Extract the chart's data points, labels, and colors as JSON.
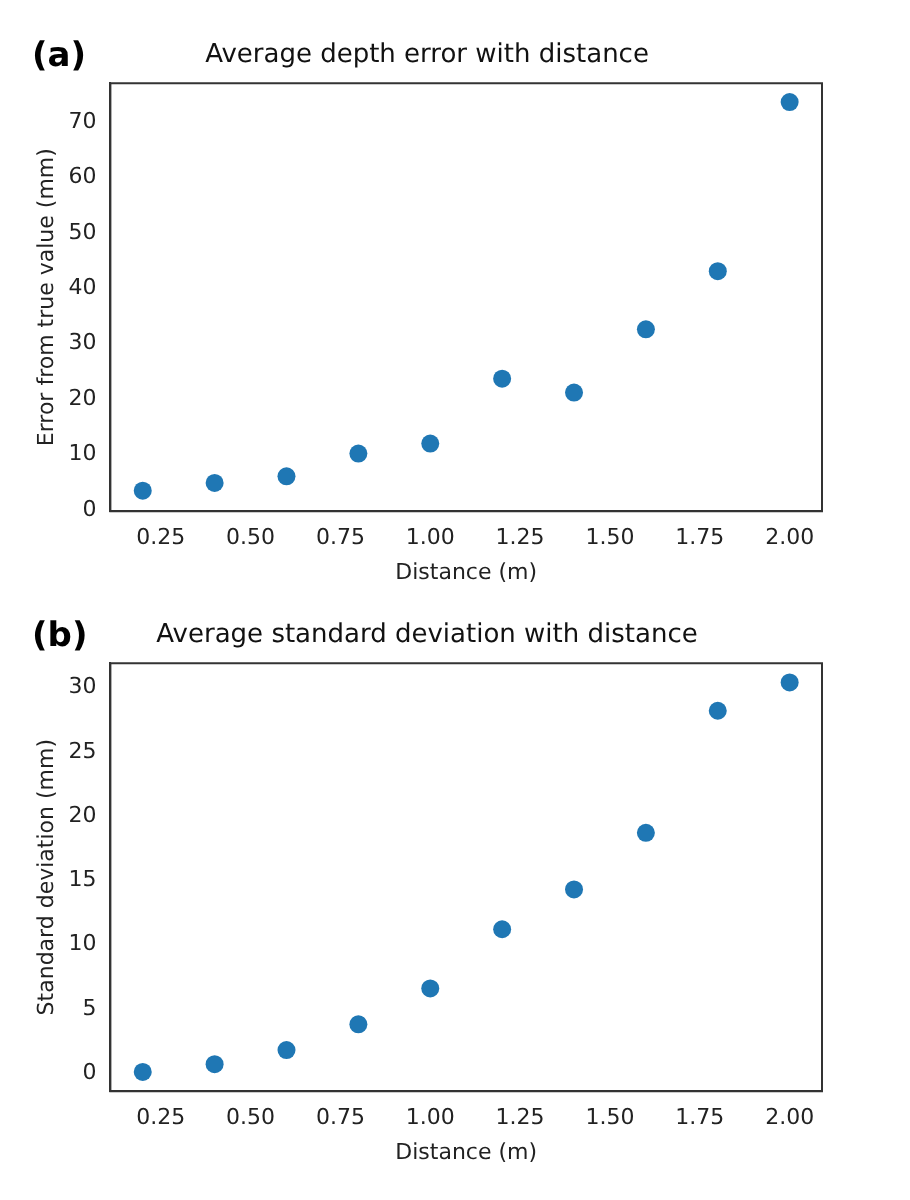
{
  "chart_data": [
    {
      "type": "scatter",
      "title": "Average depth error with distance",
      "xlabel": "Distance (m)",
      "ylabel": "Error from true value (mm)",
      "annotations": [
        "(a)"
      ],
      "x": [
        0.2,
        0.4,
        0.6,
        0.8,
        1.0,
        1.2,
        1.4,
        1.6,
        1.8,
        2.0
      ],
      "series": [
        {
          "color": "#1f77b4",
          "values": [
            3.5,
            4.9,
            6.1,
            10.2,
            12.0,
            23.7,
            21.2,
            32.6,
            43.1,
            73.6
          ]
        }
      ],
      "xlim": [
        0.11,
        2.09
      ],
      "xticks": [
        {
          "value": 0.25,
          "label": "0.25"
        },
        {
          "value": 0.5,
          "label": "0.50"
        },
        {
          "value": 0.75,
          "label": "0.75"
        },
        {
          "value": 1.0,
          "label": "1.00"
        },
        {
          "value": 1.25,
          "label": "1.25"
        },
        {
          "value": 1.5,
          "label": "1.50"
        },
        {
          "value": 1.75,
          "label": "1.75"
        },
        {
          "value": 2.0,
          "label": "2.00"
        }
      ],
      "ylim": [
        -0.2,
        77
      ],
      "yticks": [
        0,
        10,
        20,
        30,
        40,
        50,
        60,
        70
      ],
      "grid": false,
      "legend": false,
      "marker": "circle"
    },
    {
      "type": "scatter",
      "title": "Average standard deviation with distance",
      "xlabel": "Distance (m)",
      "ylabel": "Standard deviation (mm)",
      "annotations": [
        "(b)"
      ],
      "x": [
        0.2,
        0.4,
        0.6,
        0.8,
        1.0,
        1.2,
        1.4,
        1.6,
        1.8,
        2.0
      ],
      "series": [
        {
          "color": "#1f77b4",
          "values": [
            0.1,
            0.7,
            1.8,
            3.8,
            6.6,
            11.2,
            14.3,
            18.7,
            28.2,
            30.4
          ]
        }
      ],
      "xlim": [
        0.11,
        2.09
      ],
      "xticks": [
        {
          "value": 0.25,
          "label": "0.25"
        },
        {
          "value": 0.5,
          "label": "0.50"
        },
        {
          "value": 0.75,
          "label": "0.75"
        },
        {
          "value": 1.0,
          "label": "1.00"
        },
        {
          "value": 1.25,
          "label": "1.25"
        },
        {
          "value": 1.5,
          "label": "1.50"
        },
        {
          "value": 1.75,
          "label": "1.75"
        },
        {
          "value": 2.0,
          "label": "2.00"
        }
      ],
      "ylim": [
        -1.4,
        31.9
      ],
      "yticks": [
        0,
        5,
        10,
        15,
        20,
        25,
        30
      ],
      "grid": false,
      "legend": false,
      "marker": "circle"
    }
  ]
}
